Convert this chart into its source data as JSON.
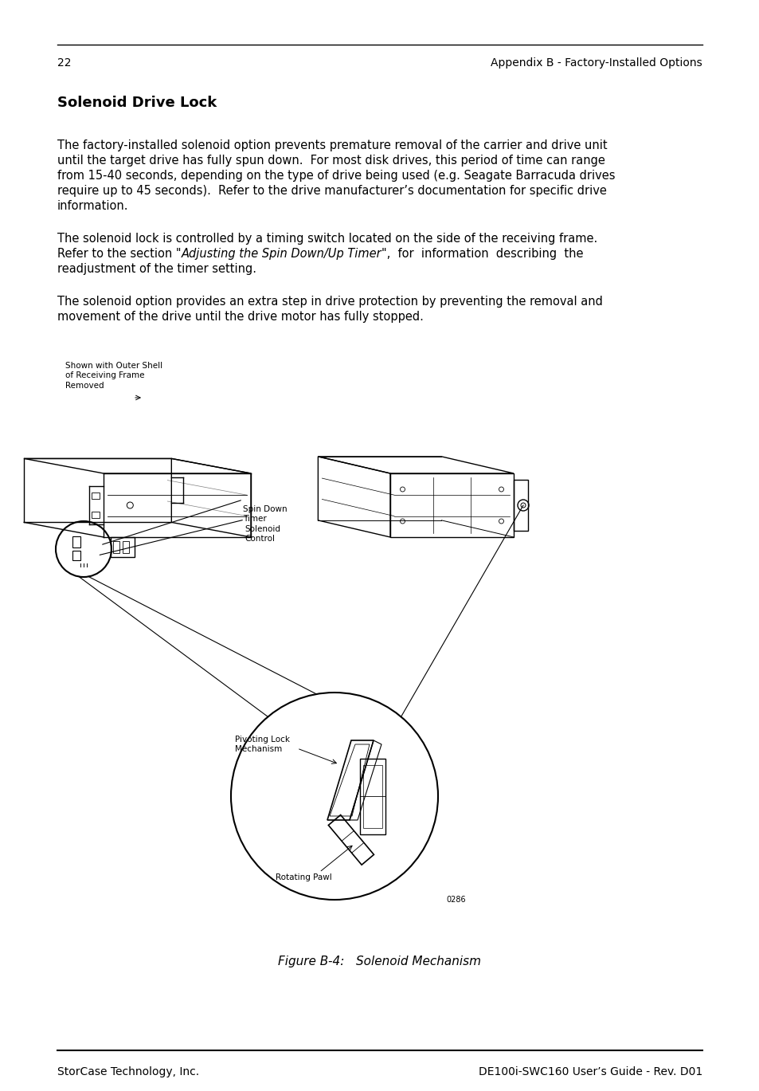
{
  "page_number": "22",
  "header_right": "Appendix B - Factory-Installed Options",
  "section_title": "Solenoid Drive Lock",
  "p1_lines": [
    "The factory-installed solenoid option prevents premature removal of the carrier and drive unit",
    "until the target drive has fully spun down.  For most disk drives, this period of time can range",
    "from 15-40 seconds, depending on the type of drive being used (e.g. Seagate Barracuda drives",
    "require up to 45 seconds).  Refer to the drive manufacturer’s documentation for specific drive",
    "information."
  ],
  "p2_line1": "The solenoid lock is controlled by a timing switch located on the side of the receiving frame.",
  "p2_line2a": "Refer to the section \"",
  "p2_line2b": "Adjusting the Spin Down/Up Timer",
  "p2_line2c": "\",  for  information  describing  the",
  "p2_line3": "readjustment of the timer setting.",
  "p3_lines": [
    "The solenoid option provides an extra step in drive protection by preventing the removal and",
    "movement of the drive until the drive motor has fully stopped."
  ],
  "label_outer_shell": "Shown with Outer Shell\nof Receiving Frame\nRemoved",
  "label_spin_down": "Spin Down\nTimer",
  "label_solenoid": "Solenoid\nControl",
  "label_pivoting": "Pivoting Lock\nMechanism",
  "label_rotating": "Rotating Pawl",
  "label_figure_number": "0286",
  "figure_caption": "Figure B-4:   Solenoid Mechanism",
  "footer_left": "StorCase Technology, Inc.",
  "footer_right": "DE100i-SWC160 User’s Guide - Rev. D01",
  "bg_color": "#ffffff",
  "text_color": "#000000",
  "lm": 72,
  "rm": 882,
  "body_fs": 10.5,
  "header_fs": 10,
  "title_fs": 13,
  "label_fs": 7.5,
  "caption_fs": 11
}
